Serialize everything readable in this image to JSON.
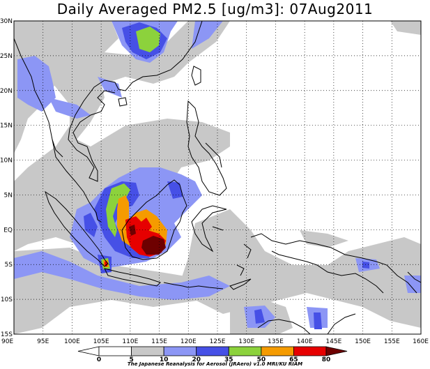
{
  "title": "Daily Averaged PM2.5 [ug/m3]: 07Aug2011",
  "lon_labels": [
    "90E",
    "95E",
    "100E",
    "105E",
    "110E",
    "115E",
    "120E",
    "125E",
    "130E",
    "135E",
    "140E",
    "145E",
    "150E",
    "155E",
    "160E"
  ],
  "lat_labels": [
    "30N",
    "25N",
    "20N",
    "15N",
    "10N",
    "5N",
    "EQ",
    "5S",
    "10S",
    "15S"
  ],
  "colorbar": {
    "levels": [
      "0",
      "5",
      "10",
      "20",
      "35",
      "50",
      "65",
      "80"
    ],
    "colors": [
      "#ffffff",
      "#ffffff",
      "#c8c8c8",
      "#8c96f5",
      "#4650e6",
      "#8cd23c",
      "#f59b00",
      "#e60000",
      "#6e0000"
    ]
  },
  "credit": "The Japanese Reanalysis for Aerosol (JRAero) v1.0 MRI/KU RIAM",
  "field_colors": {
    "grey": "#c8c8c8",
    "light_blue": "#8c96f5",
    "blue": "#4650e6",
    "green": "#8cd23c",
    "orange": "#f59b00",
    "red": "#e60000",
    "dark_red": "#6e0000"
  }
}
